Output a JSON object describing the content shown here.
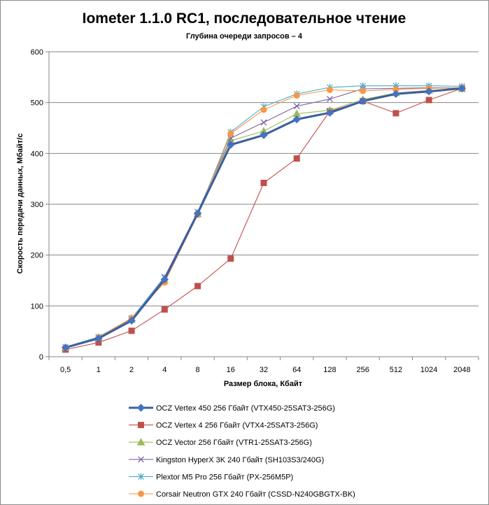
{
  "chart_data": {
    "type": "line",
    "title": "Iometer 1.1.0 RC1, последовательное чтение",
    "subtitle": "Глубина очереди запросов – 4",
    "xlabel": "Размер блока, Кбайт",
    "ylabel": "Скорость передачи данных, Мбайт/с",
    "categories": [
      "0,5",
      "1",
      "2",
      "4",
      "8",
      "16",
      "32",
      "64",
      "128",
      "256",
      "512",
      "1024",
      "2048"
    ],
    "ylim": [
      0,
      600
    ],
    "yticks": [
      0,
      100,
      200,
      300,
      400,
      500,
      600
    ],
    "grid": "horizontal",
    "legend": "bottom",
    "series": [
      {
        "name": "OCZ Vertex  450 256 Гбайт (VTX450-25SAT3-256G)",
        "color": "#4472c4",
        "stroke": "#3a5f9f",
        "marker": "diamond",
        "bold": true,
        "values": [
          18,
          36,
          71,
          152,
          282,
          417,
          436,
          467,
          480,
          503,
          517,
          522,
          528
        ]
      },
      {
        "name": "OCZ Vertex  4 256 Гбайт (VTX4-25SAT3-256G)",
        "color": "#c0504d",
        "stroke": "#c0504d",
        "marker": "square",
        "bold": false,
        "values": [
          14,
          28,
          51,
          93,
          139,
          193,
          342,
          390,
          483,
          503,
          479,
          505,
          528
        ]
      },
      {
        "name": "OCZ Vector  256 Гбайт (VTR1-25SAT3-256G)",
        "color": "#9bbb59",
        "stroke": "#9bbb59",
        "marker": "triangle",
        "bold": false,
        "values": [
          18,
          37,
          73,
          150,
          281,
          425,
          444,
          478,
          485,
          506,
          519,
          524,
          527
        ]
      },
      {
        "name": "Kingston HyperX 3K 240 Гбайт (SH103S3/240G)",
        "color": "#8064a2",
        "stroke": "#8064a2",
        "marker": "x",
        "bold": false,
        "values": [
          19,
          38,
          75,
          157,
          285,
          430,
          461,
          493,
          507,
          527,
          528,
          529,
          529
        ]
      },
      {
        "name": "Plextor M5 Pro 256 Гбайт (PX-256M5P)",
        "color": "#4bacc6",
        "stroke": "#4bacc6",
        "marker": "star",
        "bold": false,
        "values": [
          19,
          39,
          76,
          155,
          280,
          442,
          492,
          517,
          530,
          533,
          533,
          533,
          532
        ]
      },
      {
        "name": "Corsair Neutron GTX 240 Гбайт (CSSD-N240GBGTX-BK)",
        "color": "#f79646",
        "stroke": "#f79646",
        "marker": "circle",
        "bold": false,
        "values": [
          18,
          38,
          76,
          146,
          279,
          439,
          486,
          514,
          525,
          523,
          526,
          528,
          529
        ]
      }
    ]
  }
}
